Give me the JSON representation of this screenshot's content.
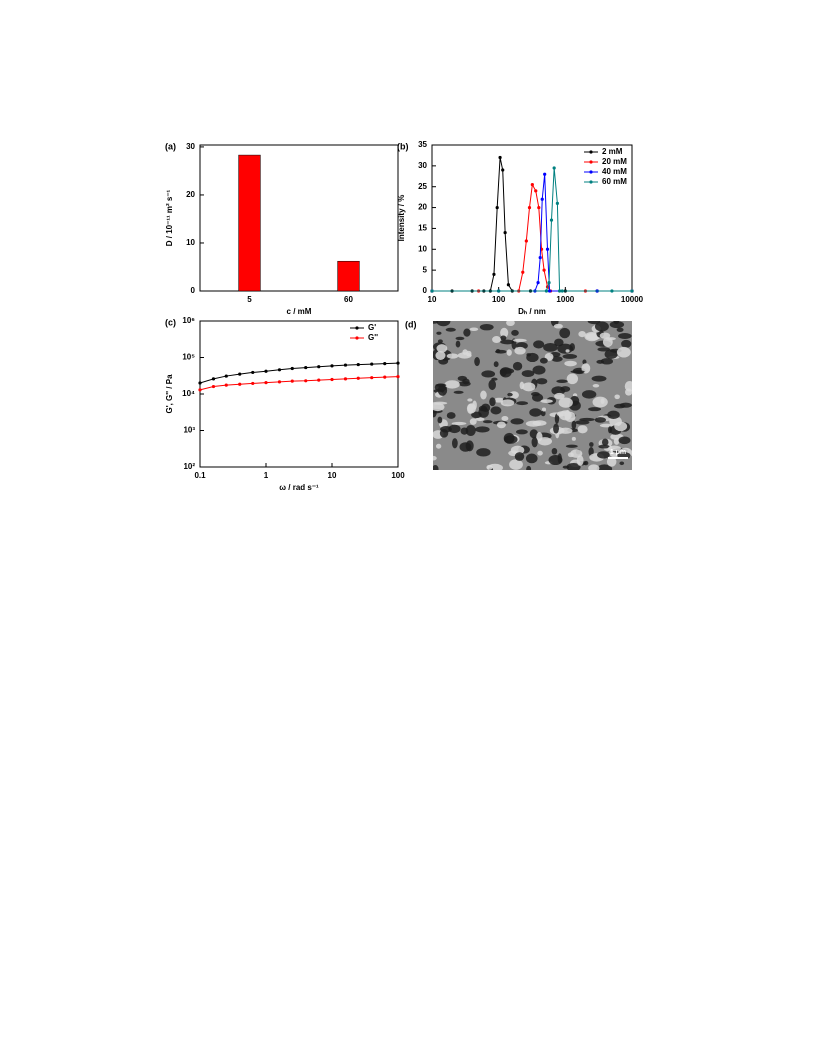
{
  "chart_data": [
    {
      "type": "bar",
      "label": "(a)",
      "xlabel": "c / mM",
      "ylabel": "D / 10⁻¹¹ m² s⁻¹",
      "categories": [
        "5",
        "60"
      ],
      "values": [
        28.3,
        6.2
      ],
      "color": "#ff0000",
      "ylim": [
        0,
        30.4
      ],
      "yticks": [
        0,
        10,
        20,
        30
      ],
      "grid": false
    },
    {
      "type": "line",
      "label": "(b)",
      "xlabel": "Dₕ / nm",
      "ylabel": "Intensity / %",
      "xlog": true,
      "xlim": [
        10,
        10000
      ],
      "xticks": [
        10,
        100,
        1000,
        10000
      ],
      "ylim": [
        0,
        35
      ],
      "yticks": [
        0,
        5,
        10,
        15,
        20,
        25,
        30,
        35
      ],
      "legend": "upper right",
      "grid": false,
      "series": [
        {
          "name": "2 mM",
          "color": "#000000",
          "x": [
            10,
            20,
            40,
            60,
            75,
            85,
            95,
            105,
            115,
            125,
            140,
            160,
            300,
            1000,
            3000,
            10000
          ],
          "values": [
            0,
            0,
            0,
            0,
            0,
            4,
            20,
            32,
            29,
            14,
            1.5,
            0,
            0,
            0,
            0,
            0
          ]
        },
        {
          "name": "20 mM",
          "color": "#ff0000",
          "x": [
            10,
            50,
            200,
            230,
            260,
            290,
            320,
            360,
            400,
            440,
            480,
            540,
            600,
            2000,
            10000
          ],
          "values": [
            0,
            0,
            0,
            4.5,
            12,
            20,
            25.5,
            24,
            20,
            10,
            5,
            1,
            0,
            0,
            0
          ]
        },
        {
          "name": "40 mM",
          "color": "#0000ff",
          "x": [
            10,
            100,
            350,
            390,
            420,
            450,
            490,
            540,
            580,
            3000,
            10000
          ],
          "values": [
            0,
            0,
            0,
            2,
            8,
            22,
            28,
            10,
            0,
            0,
            0
          ]
        },
        {
          "name": "60 mM",
          "color": "#008080",
          "x": [
            10,
            100,
            520,
            570,
            620,
            680,
            760,
            820,
            900,
            5000,
            10000
          ],
          "values": [
            0,
            0,
            0,
            2,
            17,
            29.5,
            21,
            0,
            0,
            0,
            0
          ]
        }
      ]
    },
    {
      "type": "line",
      "label": "(c)",
      "xlabel": "ω / rad s⁻¹",
      "ylabel": "G', G'' / Pa",
      "xlog": true,
      "ylog": true,
      "xlim": [
        0.1,
        100
      ],
      "xticks": [
        0.1,
        1,
        10,
        100
      ],
      "ylim": [
        100,
        1000000
      ],
      "yticks": [
        {
          "value": 100,
          "label": "10²"
        },
        {
          "value": 1000,
          "label": "10³"
        },
        {
          "value": 10000,
          "label": "10⁴"
        },
        {
          "value": 100000,
          "label": "10⁵"
        },
        {
          "value": 1000000,
          "label": "10⁶"
        }
      ],
      "legend": "upper right",
      "grid": false,
      "series": [
        {
          "name": "G'",
          "color": "#000000",
          "x": [
            0.1,
            0.16,
            0.25,
            0.4,
            0.63,
            1,
            1.6,
            2.5,
            4,
            6.3,
            10,
            16,
            25,
            40,
            63,
            100
          ],
          "values": [
            20000,
            26000,
            31000,
            35000,
            39000,
            42000,
            46000,
            50000,
            53000,
            56000,
            59000,
            62000,
            64000,
            66000,
            68000,
            70000
          ]
        },
        {
          "name": "G''",
          "color": "#ff0000",
          "x": [
            0.1,
            0.16,
            0.25,
            0.4,
            0.63,
            1,
            1.6,
            2.5,
            4,
            6.3,
            10,
            16,
            25,
            40,
            63,
            100
          ],
          "values": [
            13000,
            16000,
            17500,
            18500,
            19500,
            20500,
            21500,
            22500,
            23000,
            24000,
            25000,
            26000,
            27000,
            28000,
            29000,
            30000
          ]
        }
      ]
    }
  ],
  "image": {
    "label": "(d)",
    "scale_bar": "1 μm"
  }
}
